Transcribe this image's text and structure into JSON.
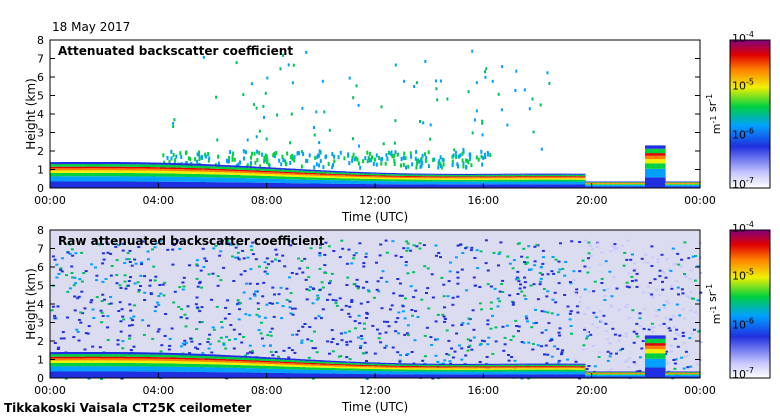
{
  "header": {
    "date": "18 May 2017"
  },
  "footer": {
    "station": "Tikkakoski Vaisala CT25K ceilometer"
  },
  "chart_data": [
    {
      "type": "heatmap",
      "title": "Attenuated backscatter coefficient",
      "xlabel": "Time (UTC)",
      "ylabel": "Height (km)",
      "x_ticks": [
        "00:00",
        "04:00",
        "08:00",
        "12:00",
        "16:00",
        "20:00",
        "00:00"
      ],
      "y_ticks": [
        "0",
        "1",
        "2",
        "3",
        "4",
        "5",
        "6",
        "7",
        "8"
      ],
      "ylim": [
        0,
        8
      ],
      "colorbar": {
        "ticks": [
          "10^-7",
          "10^-6",
          "10^-5",
          "10^-4"
        ],
        "unit": "m-1 sr-1"
      }
    },
    {
      "type": "heatmap",
      "title": "Raw attenuated backscatter coefficient",
      "xlabel": "Time (UTC)",
      "ylabel": "Height (km)",
      "x_ticks": [
        "00:00",
        "04:00",
        "08:00",
        "12:00",
        "16:00",
        "20:00",
        "00:00"
      ],
      "y_ticks": [
        "0",
        "1",
        "2",
        "3",
        "4",
        "5",
        "6",
        "7",
        "8"
      ],
      "ylim": [
        0,
        8
      ],
      "colorbar": {
        "ticks": [
          "10^-7",
          "10^-6",
          "10^-5",
          "10^-4"
        ],
        "unit": "m-1 sr-1"
      }
    }
  ]
}
